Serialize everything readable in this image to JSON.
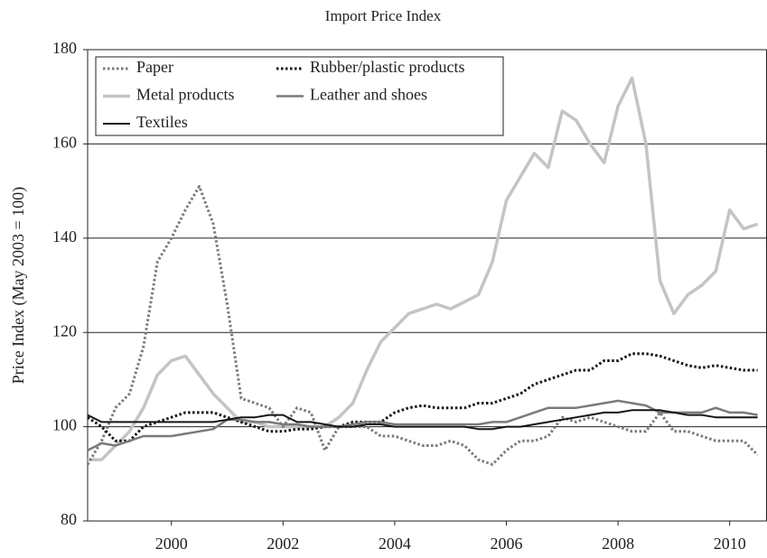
{
  "chart_data": {
    "type": "line",
    "title": "Import Price Index",
    "y_label": "Price Index (May 2003 = 100)",
    "x": [
      1998.5,
      1998.75,
      1999,
      1999.25,
      1999.5,
      1999.75,
      2000,
      2000.25,
      2000.5,
      2000.75,
      2001,
      2001.25,
      2001.5,
      2001.75,
      2002,
      2002.25,
      2002.5,
      2002.75,
      2003,
      2003.25,
      2003.5,
      2003.75,
      2004,
      2004.25,
      2004.5,
      2004.75,
      2005,
      2005.25,
      2005.5,
      2005.75,
      2006,
      2006.25,
      2006.5,
      2006.75,
      2007,
      2007.25,
      2007.5,
      2007.75,
      2008,
      2008.25,
      2008.5,
      2008.75,
      2009,
      2009.25,
      2009.5,
      2009.75,
      2010,
      2010.25,
      2010.5
    ],
    "xlim": [
      1998.5,
      2010.66
    ],
    "xticks": [
      2000,
      2002,
      2004,
      2006,
      2008,
      2010
    ],
    "ylim": [
      80,
      180
    ],
    "yticks": [
      80,
      100,
      120,
      140,
      160,
      180
    ],
    "grid": true,
    "legend": "upper left",
    "series": [
      {
        "name": "Paper",
        "color": "#7a7a7a",
        "dash": "dotted",
        "width": 3,
        "values": [
          92,
          97,
          104,
          107,
          117,
          135,
          140,
          146,
          151,
          143,
          126,
          106,
          105,
          104,
          100,
          104,
          103,
          95,
          100,
          100,
          100,
          98,
          98,
          97,
          96,
          96,
          97,
          96,
          93,
          92,
          95,
          97,
          97,
          98,
          102,
          101,
          102,
          101,
          100,
          99,
          99,
          103,
          99,
          99,
          98,
          97,
          97,
          97,
          94
        ]
      },
      {
        "name": "Rubber/plastic products",
        "color": "#151515",
        "dash": "dotted",
        "width": 3,
        "values": [
          102,
          100,
          97,
          97,
          100,
          101,
          102,
          103,
          103,
          103,
          102,
          101,
          100,
          99,
          99,
          99.5,
          99.5,
          100,
          100,
          101,
          101,
          101,
          103,
          104,
          104.5,
          104,
          104,
          104,
          105,
          105,
          106,
          107,
          109,
          110,
          111,
          112,
          112,
          114,
          114,
          115.5,
          115.5,
          115,
          114,
          113,
          112.5,
          113,
          112.5,
          112,
          112
        ]
      },
      {
        "name": "Metal products",
        "color": "#c4c4c4",
        "dash": "solid",
        "width": 3.5,
        "values": [
          93,
          93,
          96,
          99,
          104,
          111,
          114,
          115,
          111,
          107,
          104,
          101,
          101,
          100,
          100,
          100,
          100,
          100,
          102,
          105,
          112,
          118,
          121,
          124,
          125,
          126,
          125,
          126.5,
          128,
          135,
          148,
          153,
          158,
          155,
          167,
          165,
          160,
          156,
          168,
          174,
          160,
          131,
          124,
          128,
          130,
          133,
          146,
          142,
          143
        ]
      },
      {
        "name": "Leather and shoes",
        "color": "#7a7a7a",
        "dash": "solid",
        "width": 2.5,
        "values": [
          95,
          96.5,
          96,
          97,
          98,
          98,
          98,
          98.5,
          99,
          99.5,
          101.5,
          101.5,
          101,
          101,
          100.5,
          100.5,
          100,
          100,
          100,
          100.5,
          101,
          101,
          100.5,
          100.5,
          100.5,
          100.5,
          100.5,
          100.5,
          100.5,
          101,
          101,
          102,
          103,
          104,
          104,
          104,
          104.5,
          105,
          105.5,
          105,
          104.5,
          103,
          103,
          103,
          103,
          104,
          103,
          103,
          102.5
        ]
      },
      {
        "name": "Textiles",
        "color": "#151515",
        "dash": "solid",
        "width": 2,
        "values": [
          102.5,
          101,
          101,
          101,
          101,
          101,
          101,
          101,
          101,
          101,
          101.5,
          102,
          102,
          102.5,
          102.5,
          101,
          101,
          100.5,
          100,
          100,
          100.5,
          100.5,
          100,
          100,
          100,
          100,
          100,
          100,
          99.5,
          99.5,
          100,
          100,
          100.5,
          101,
          101.5,
          102,
          102.5,
          103,
          103,
          103.5,
          103.5,
          103.5,
          103,
          102.5,
          102.5,
          102,
          102,
          102,
          102
        ]
      }
    ]
  }
}
